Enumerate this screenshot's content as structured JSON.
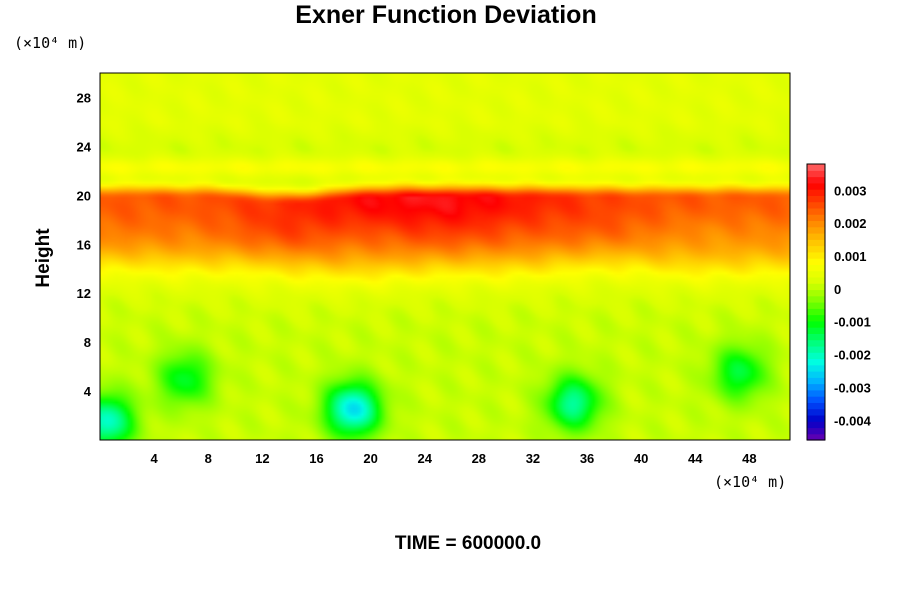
{
  "chart_data": {
    "type": "heatmap",
    "title": "Exner Function Deviation",
    "ylabel": "Height",
    "xlabel": "",
    "x_unit": "(×10⁴ m)",
    "y_unit": "(×10⁴ m)",
    "time_label": "TIME = 600000.0",
    "xlim": [
      0,
      51
    ],
    "ylim": [
      0,
      30
    ],
    "x_ticks": [
      4,
      8,
      12,
      16,
      20,
      24,
      28,
      32,
      36,
      40,
      44,
      48
    ],
    "y_ticks": [
      4,
      8,
      12,
      16,
      20,
      24,
      28
    ],
    "colorbar": {
      "range": [
        -0.0046,
        0.0038
      ],
      "ticks": [
        {
          "value": 0.003,
          "label": "0.003"
        },
        {
          "value": 0.002,
          "label": "0.002"
        },
        {
          "value": 0.001,
          "label": "0.001"
        },
        {
          "value": 0,
          "label": "0"
        },
        {
          "value": -0.001,
          "label": "-0.001"
        },
        {
          "value": -0.002,
          "label": "-0.002"
        },
        {
          "value": -0.003,
          "label": "-0.003"
        },
        {
          "value": -0.004,
          "label": "-0.004"
        }
      ],
      "colors": [
        "#6a00b0",
        "#0000c8",
        "#0050ff",
        "#00b4ff",
        "#00ffe0",
        "#00ff78",
        "#00ff00",
        "#78ff00",
        "#d8ff00",
        "#ffff00",
        "#ffc800",
        "#ff8c00",
        "#ff4600",
        "#ff0000",
        "#ff6a6a"
      ]
    },
    "field_features": {
      "background_value": 0.0001,
      "warm_band": {
        "center_height": 19.8,
        "width": 1.8,
        "peak_value": 0.0032,
        "peak_x": 24
      },
      "upper_band": {
        "center_height": 22.3,
        "value": 0.0006
      },
      "top_region_value": 0.0003,
      "cold_spots": [
        {
          "x": 0.5,
          "y": 1.5,
          "value": -0.0022
        },
        {
          "x": 6.3,
          "y": 5.0,
          "value": -0.0013
        },
        {
          "x": 18.7,
          "y": 2.5,
          "value": -0.0026
        },
        {
          "x": 35.0,
          "y": 3.0,
          "value": -0.0019
        },
        {
          "x": 47.3,
          "y": 5.5,
          "value": -0.0014
        }
      ]
    }
  }
}
